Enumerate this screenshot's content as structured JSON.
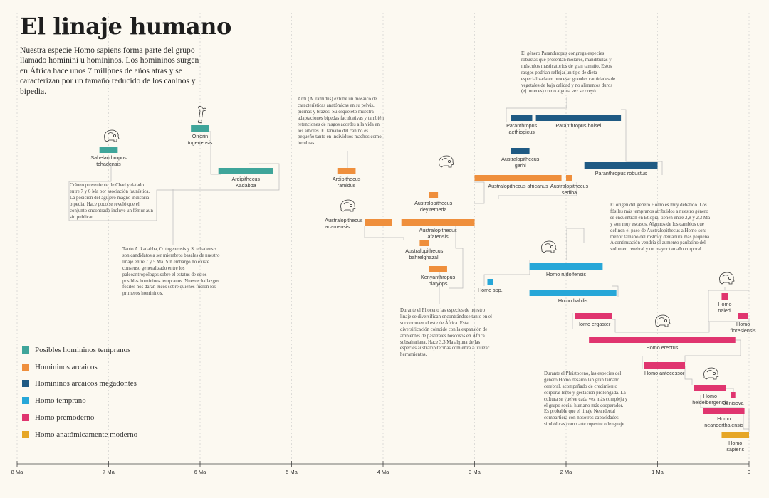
{
  "title": "El linaje humano",
  "intro": "Nuestra especie Homo sapiens forma parte del grupo llamado hominini u homininos. Los homininos surgen en África hace unos 7 millones de años atrás y se caracterizan por un tamaño reducido de los caninos y bipedia.",
  "colors": {
    "Posibles homininos tempranos": "#3fa59a",
    "Homininos arcaicos": "#ef8f3c",
    "Homininos arcaicos megadontes": "#1f5a83",
    "Homo temprano": "#27a7d8",
    "Homo premoderno": "#e0356f",
    "Homo anatómicamente moderno": "#e6a626"
  },
  "legend": [
    {
      "label": "Posibles homininos tempranos",
      "color": "#3fa59a"
    },
    {
      "label": "Homininos arcaicos",
      "color": "#ef8f3c"
    },
    {
      "label": "Homininos arcaicos megadontes",
      "color": "#1f5a83"
    },
    {
      "label": "Homo temprano",
      "color": "#27a7d8"
    },
    {
      "label": "Homo premoderno",
      "color": "#e0356f"
    },
    {
      "label": "Homo anatómicamente moderno",
      "color": "#e6a626"
    }
  ],
  "axis": {
    "unit": "Ma",
    "ticks": [
      {
        "value": 8,
        "label": "8 Ma"
      },
      {
        "value": 7,
        "label": "7 Ma"
      },
      {
        "value": 6,
        "label": "6 Ma"
      },
      {
        "value": 5,
        "label": "5 Ma"
      },
      {
        "value": 4,
        "label": "4 Ma"
      },
      {
        "value": 3,
        "label": "3 Ma"
      },
      {
        "value": 2,
        "label": "2 Ma"
      },
      {
        "value": 1,
        "label": "1 Ma"
      },
      {
        "value": 0,
        "label": "0"
      }
    ]
  },
  "notes": {
    "sahelanthropus": "Cráneo proveniente de Chad y datado entre 7 y 6 Ma por asociación faunística. La posición del agujero magno indicaría bipedia. Hace poco se reveló que el conjunto encontrado incluye un fémur aun sin publicar.",
    "early_candidates": "Tanto A. kadabba, O. tugenensis y S. tchadensis son candidatos a ser miembros basales de nuestro linaje entre 7 y 5 Ma. Sin embargo no existe consenso generalizado entre los paleoantropólogos sobre el estatus de estos posibles homininos tempranos. Nuevos hallazgos fósiles nos darán luces sobre quienes fueron los primeros homininos.",
    "ardi": "Ardi (A. ramidus) exhibe un mosaico de características anatómicas en su pelvis, piernas y brazos. Su esqueleto muestra adaptaciones bípedas facultativas y también retenciones de rasgos acordes a la vida en los árboles. El tamaño del canino es pequeño tanto en individuos machos como hembras.",
    "paranthropus": "El género Paranthropus congrega especies robustas que presentan molares, mandíbulas y músculos masticatorios de gran tamaño. Estos rasgos podrían reflejar un tipo de dieta especializada en procesar grandes cantidades de vegetales de baja calidad y no alimentos duros (ej. nueces) como alguna vez se creyó.",
    "pliocene": "Durante el Plioceno las especies de nuestro linaje se diversifican encontrándose tanto en el sur como en el este de África. Esta diversificación coincide con la expansión de ambientes de pastizales boscosos en África subsahariana. Hace 3,3 Ma alguna de las especies australopitecinas comienza a utilizar herramientas.",
    "homo_origin": "El origen del género Homo es muy debatido. Los fósiles más tempranos atribuidos a nuestro género se encuentran en Etiopía, tienen entre 2,8 y 2,3 Ma y son muy escasos. Algunos de los cambios que definen el paso de Australopithecus a Homo son: menor tamaño del rostro y dentadura más pequeña. A continuación vendría el aumento paulatino del volumen cerebral y un mayor tamaño corporal.",
    "pleistocene": "Durante el Pleistoceno, las especies del género Homo desarrollan gran tamaño cerebral, acompañado de crecimiento corporal lento y gestación prolongada. La cultura se vuelve cada vez más compleja y el grupo social humano más cooperador. Es probable que el linaje Neandertal compartiera con nosotros capacidades simbólicas como arte rupestre o lenguaje."
  },
  "chart_data": {
    "type": "timeline",
    "x_unit": "Ma",
    "xlim": [
      8,
      0
    ],
    "species": [
      {
        "name": "Sahelanthropus tchadensis",
        "group": "Posibles homininos tempranos",
        "start": 7.1,
        "end": 6.9
      },
      {
        "name": "Orrorin tugenensis",
        "group": "Posibles homininos tempranos",
        "start": 6.1,
        "end": 5.9
      },
      {
        "name": "Ardipithecus Kadabba",
        "group": "Posibles homininos tempranos",
        "start": 5.8,
        "end": 5.2
      },
      {
        "name": "Ardipithecus ramidus",
        "group": "Homininos arcaicos",
        "start": 4.5,
        "end": 4.3
      },
      {
        "name": "Australopithecus anamensis",
        "group": "Homininos arcaicos",
        "start": 4.2,
        "end": 3.9
      },
      {
        "name": "Australopithecus deyiremeda",
        "group": "Homininos arcaicos",
        "start": 3.5,
        "end": 3.4
      },
      {
        "name": "Australopithecus afarensis",
        "group": "Homininos arcaicos",
        "start": 3.8,
        "end": 3.0
      },
      {
        "name": "Australopithecus bahrelghazali",
        "group": "Homininos arcaicos",
        "start": 3.6,
        "end": 3.5
      },
      {
        "name": "Kenyanthropus platyops",
        "group": "Homininos arcaicos",
        "start": 3.5,
        "end": 3.3
      },
      {
        "name": "Australopithecus africanus",
        "group": "Homininos arcaicos",
        "start": 3.0,
        "end": 2.05
      },
      {
        "name": "Australopithecus garhi",
        "group": "Homininos arcaicos megadontes",
        "start": 2.6,
        "end": 2.4
      },
      {
        "name": "Australopithecus sediba",
        "group": "Homininos arcaicos",
        "start": 2.0,
        "end": 1.93
      },
      {
        "name": "Paranthropus aethiopicus",
        "group": "Homininos arcaicos megadontes",
        "start": 2.6,
        "end": 2.37
      },
      {
        "name": "Paranthropus boisei",
        "group": "Homininos arcaicos megadontes",
        "start": 2.33,
        "end": 1.4
      },
      {
        "name": "Paranthropus robustus",
        "group": "Homininos arcaicos megadontes",
        "start": 1.8,
        "end": 1.0
      },
      {
        "name": "Homo spp.",
        "group": "Homo temprano",
        "start": 2.86,
        "end": 2.8
      },
      {
        "name": "Homo rudolfensis",
        "group": "Homo temprano",
        "start": 2.4,
        "end": 1.6
      },
      {
        "name": "Homo habilis",
        "group": "Homo temprano",
        "start": 2.4,
        "end": 1.45
      },
      {
        "name": "Homo naledi",
        "group": "Homo premoderno",
        "start": 0.3,
        "end": 0.23
      },
      {
        "name": "Homo floresiensis",
        "group": "Homo premoderno",
        "start": 0.12,
        "end": 0.01
      },
      {
        "name": "Homo ergaster",
        "group": "Homo premoderno",
        "start": 1.9,
        "end": 1.5
      },
      {
        "name": "Homo erectus",
        "group": "Homo premoderno",
        "start": 1.75,
        "end": 0.15
      },
      {
        "name": "Homo antecessor",
        "group": "Homo premoderno",
        "start": 1.15,
        "end": 0.7
      },
      {
        "name": "Homo heidelbergensis",
        "group": "Homo premoderno",
        "start": 0.6,
        "end": 0.25
      },
      {
        "name": "Denisova",
        "group": "Homo premoderno",
        "start": 0.2,
        "end": 0.15
      },
      {
        "name": "Homo neanderthalensis",
        "group": "Homo premoderno",
        "start": 0.5,
        "end": 0.05
      },
      {
        "name": "Homo sapiens",
        "group": "Homo anatómicamente moderno",
        "start": 0.3,
        "end": 0.0
      }
    ]
  }
}
